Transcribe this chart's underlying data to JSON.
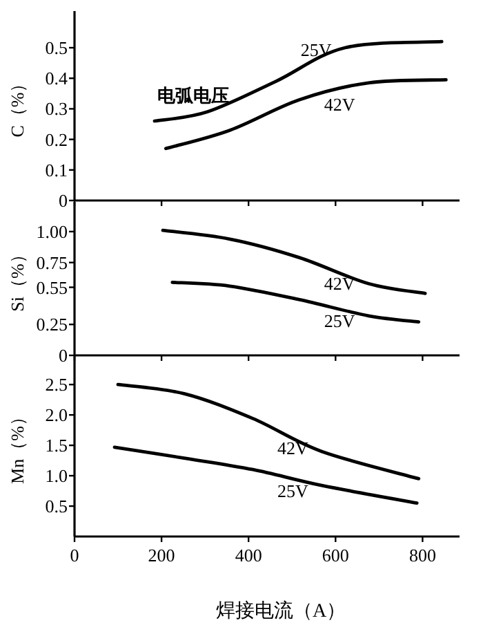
{
  "chart_data": [
    {
      "type": "line",
      "ylabel": "C（%）",
      "xlim": [
        0,
        885
      ],
      "ylim": [
        0,
        0.62
      ],
      "xticks": [
        0,
        200,
        400,
        600,
        800
      ],
      "yticks": [
        0,
        0.1,
        0.2,
        0.3,
        0.4,
        0.5
      ],
      "tick_labels": "y",
      "annotations": [
        "电弧电压"
      ],
      "series": [
        {
          "name": "25V",
          "color": "#000000",
          "x": [
            184,
            305,
            463,
            622,
            844
          ],
          "values": [
            0.26,
            0.29,
            0.39,
            0.5,
            0.52
          ]
        },
        {
          "name": "42V",
          "color": "#000000",
          "x": [
            210,
            357,
            517,
            676,
            854
          ],
          "values": [
            0.17,
            0.23,
            0.33,
            0.385,
            0.395
          ]
        }
      ]
    },
    {
      "type": "line",
      "ylabel": "Si（%）",
      "xlim": [
        0,
        885
      ],
      "ylim": [
        0,
        1.24
      ],
      "xticks": [
        0,
        200,
        400,
        600,
        800
      ],
      "yticks": [
        0,
        0.25,
        0.55,
        0.75,
        {
          "value": 1.0,
          "label": "1.00"
        }
      ],
      "tick_labels": "y",
      "series": [
        {
          "name": "42V",
          "color": "#000000",
          "x": [
            203,
            357,
            517,
            676,
            806
          ],
          "values": [
            1.01,
            0.94,
            0.79,
            0.58,
            0.5
          ]
        },
        {
          "name": "25V",
          "color": "#000000",
          "x": [
            225,
            357,
            517,
            676,
            791
          ],
          "values": [
            0.59,
            0.56,
            0.45,
            0.32,
            0.27
          ]
        }
      ]
    },
    {
      "type": "line",
      "ylabel": "Mn（%）",
      "xlabel": "焊接电流（A）",
      "xlim": [
        0,
        885
      ],
      "ylim": [
        0,
        2.98
      ],
      "xticks": [
        0,
        200,
        400,
        600,
        800
      ],
      "yticks": [
        {
          "value": 0.5,
          "label": "0.5"
        },
        {
          "value": 1.0,
          "label": "1.0"
        },
        {
          "value": 1.5,
          "label": "1.5"
        },
        {
          "value": 2.0,
          "label": "2.0"
        },
        {
          "value": 2.5,
          "label": "2.5"
        }
      ],
      "series": [
        {
          "name": "42V",
          "color": "#000000",
          "x": [
            100,
            252,
            410,
            568,
            791
          ],
          "values": [
            2.5,
            2.35,
            1.94,
            1.4,
            0.95
          ]
        },
        {
          "name": "25V",
          "color": "#000000",
          "x": [
            92,
            252,
            410,
            568,
            787
          ],
          "values": [
            1.47,
            1.29,
            1.1,
            0.84,
            0.55
          ]
        }
      ]
    }
  ]
}
